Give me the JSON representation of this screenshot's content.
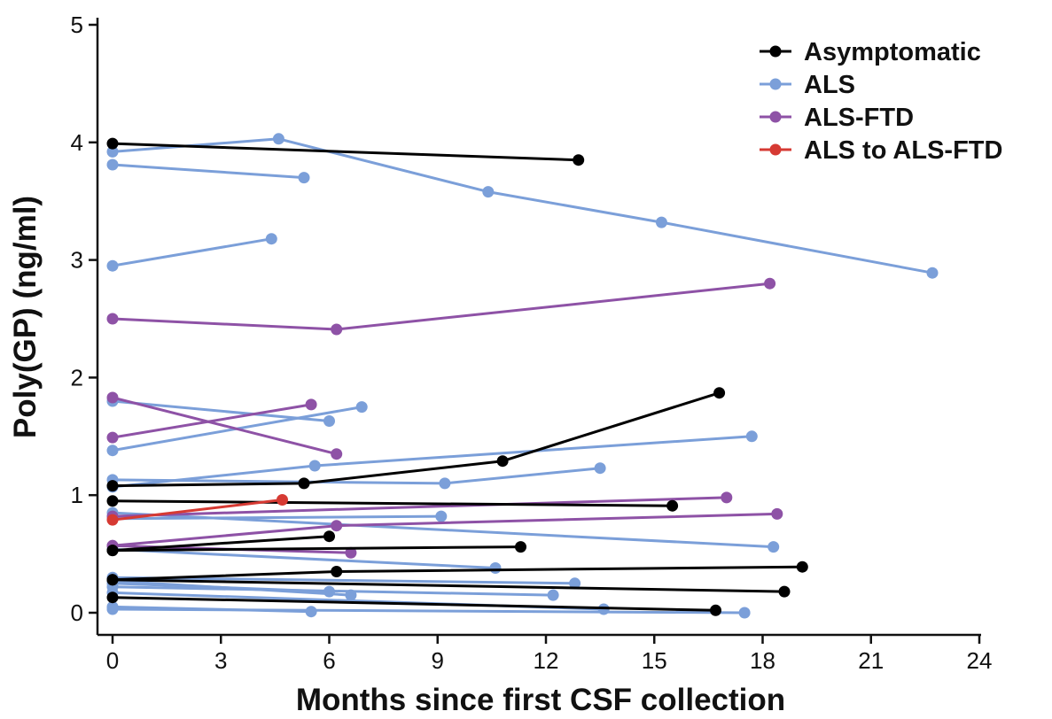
{
  "chart_data": {
    "type": "line",
    "title": "",
    "xlabel": "Months since first CSF collection",
    "ylabel": "Poly(GP) (ng/ml)",
    "xlim": [
      0,
      24
    ],
    "ylim": [
      0,
      5
    ],
    "xticks": [
      "0",
      "3",
      "6",
      "9",
      "12",
      "15",
      "18",
      "21",
      "24"
    ],
    "yticks": [
      "0",
      "1",
      "2",
      "3",
      "4",
      "5"
    ],
    "grid": false,
    "legend_position": "top-right",
    "groups": [
      {
        "name": "Asymptomatic",
        "color": "#000000"
      },
      {
        "name": "ALS",
        "color": "#7b9fd9"
      },
      {
        "name": "ALS-FTD",
        "color": "#8e52a6"
      },
      {
        "name": "ALS to ALS-FTD",
        "color": "#d63a33"
      }
    ],
    "series": [
      {
        "group": "ALS",
        "points": [
          [
            0,
            3.92
          ],
          [
            4.6,
            4.03
          ],
          [
            10.4,
            3.58
          ],
          [
            15.2,
            3.32
          ],
          [
            22.7,
            2.89
          ]
        ]
      },
      {
        "group": "ALS",
        "points": [
          [
            0,
            3.81
          ],
          [
            5.3,
            3.7
          ]
        ]
      },
      {
        "group": "ALS",
        "points": [
          [
            0,
            2.95
          ],
          [
            4.4,
            3.18
          ]
        ]
      },
      {
        "group": "ALS",
        "points": [
          [
            0,
            1.8
          ],
          [
            6.0,
            1.63
          ]
        ]
      },
      {
        "group": "ALS",
        "points": [
          [
            0,
            1.38
          ],
          [
            6.9,
            1.75
          ]
        ]
      },
      {
        "group": "ALS",
        "points": [
          [
            0,
            1.07
          ],
          [
            5.6,
            1.25
          ],
          [
            17.7,
            1.5
          ]
        ]
      },
      {
        "group": "ALS",
        "points": [
          [
            0,
            1.13
          ],
          [
            9.2,
            1.1
          ],
          [
            13.5,
            1.23
          ]
        ]
      },
      {
        "group": "ALS",
        "points": [
          [
            0,
            0.8
          ],
          [
            9.1,
            0.82
          ]
        ]
      },
      {
        "group": "ALS",
        "points": [
          [
            0,
            0.85
          ],
          [
            18.3,
            0.56
          ]
        ]
      },
      {
        "group": "ALS",
        "points": [
          [
            0,
            0.54
          ],
          [
            10.6,
            0.38
          ]
        ]
      },
      {
        "group": "ALS",
        "points": [
          [
            0,
            0.3
          ],
          [
            12.8,
            0.25
          ]
        ]
      },
      {
        "group": "ALS",
        "points": [
          [
            0,
            0.25
          ],
          [
            6.0,
            0.18
          ]
        ]
      },
      {
        "group": "ALS",
        "points": [
          [
            0,
            0.22
          ],
          [
            12.2,
            0.15
          ]
        ]
      },
      {
        "group": "ALS",
        "points": [
          [
            0,
            0.27
          ],
          [
            6.6,
            0.15
          ]
        ]
      },
      {
        "group": "ALS",
        "points": [
          [
            0,
            0.17
          ],
          [
            13.6,
            0.03
          ]
        ]
      },
      {
        "group": "ALS",
        "points": [
          [
            0,
            0.05
          ],
          [
            5.5,
            0.01
          ]
        ]
      },
      {
        "group": "ALS",
        "points": [
          [
            0,
            0.03
          ],
          [
            17.5,
            0.0
          ]
        ]
      },
      {
        "group": "Asymptomatic",
        "points": [
          [
            0,
            3.99
          ],
          [
            12.9,
            3.85
          ]
        ]
      },
      {
        "group": "Asymptomatic",
        "points": [
          [
            0,
            1.08
          ],
          [
            5.3,
            1.1
          ],
          [
            10.8,
            1.29
          ],
          [
            16.8,
            1.87
          ]
        ]
      },
      {
        "group": "Asymptomatic",
        "points": [
          [
            0,
            0.95
          ],
          [
            15.5,
            0.91
          ]
        ]
      },
      {
        "group": "Asymptomatic",
        "points": [
          [
            0,
            0.53
          ],
          [
            6.0,
            0.65
          ]
        ]
      },
      {
        "group": "Asymptomatic",
        "points": [
          [
            0,
            0.53
          ],
          [
            11.3,
            0.56
          ]
        ]
      },
      {
        "group": "Asymptomatic",
        "points": [
          [
            0,
            0.28
          ],
          [
            6.2,
            0.35
          ],
          [
            19.1,
            0.39
          ]
        ]
      },
      {
        "group": "Asymptomatic",
        "points": [
          [
            0,
            0.28
          ],
          [
            18.6,
            0.18
          ]
        ]
      },
      {
        "group": "Asymptomatic",
        "points": [
          [
            0,
            0.13
          ],
          [
            16.7,
            0.02
          ]
        ]
      },
      {
        "group": "ALS-FTD",
        "points": [
          [
            0,
            2.5
          ],
          [
            6.2,
            2.41
          ],
          [
            18.2,
            2.8
          ]
        ]
      },
      {
        "group": "ALS-FTD",
        "points": [
          [
            0,
            1.83
          ],
          [
            6.2,
            1.35
          ]
        ]
      },
      {
        "group": "ALS-FTD",
        "points": [
          [
            0,
            1.49
          ],
          [
            5.5,
            1.77
          ]
        ]
      },
      {
        "group": "ALS-FTD",
        "points": [
          [
            0,
            0.82
          ],
          [
            17.0,
            0.98
          ]
        ]
      },
      {
        "group": "ALS-FTD",
        "points": [
          [
            0,
            0.57
          ],
          [
            6.2,
            0.74
          ],
          [
            18.4,
            0.84
          ]
        ]
      },
      {
        "group": "ALS-FTD",
        "points": [
          [
            0,
            0.57
          ],
          [
            6.6,
            0.51
          ]
        ]
      },
      {
        "group": "ALS to ALS-FTD",
        "points": [
          [
            0,
            0.79
          ],
          [
            4.7,
            0.96
          ]
        ]
      }
    ]
  }
}
